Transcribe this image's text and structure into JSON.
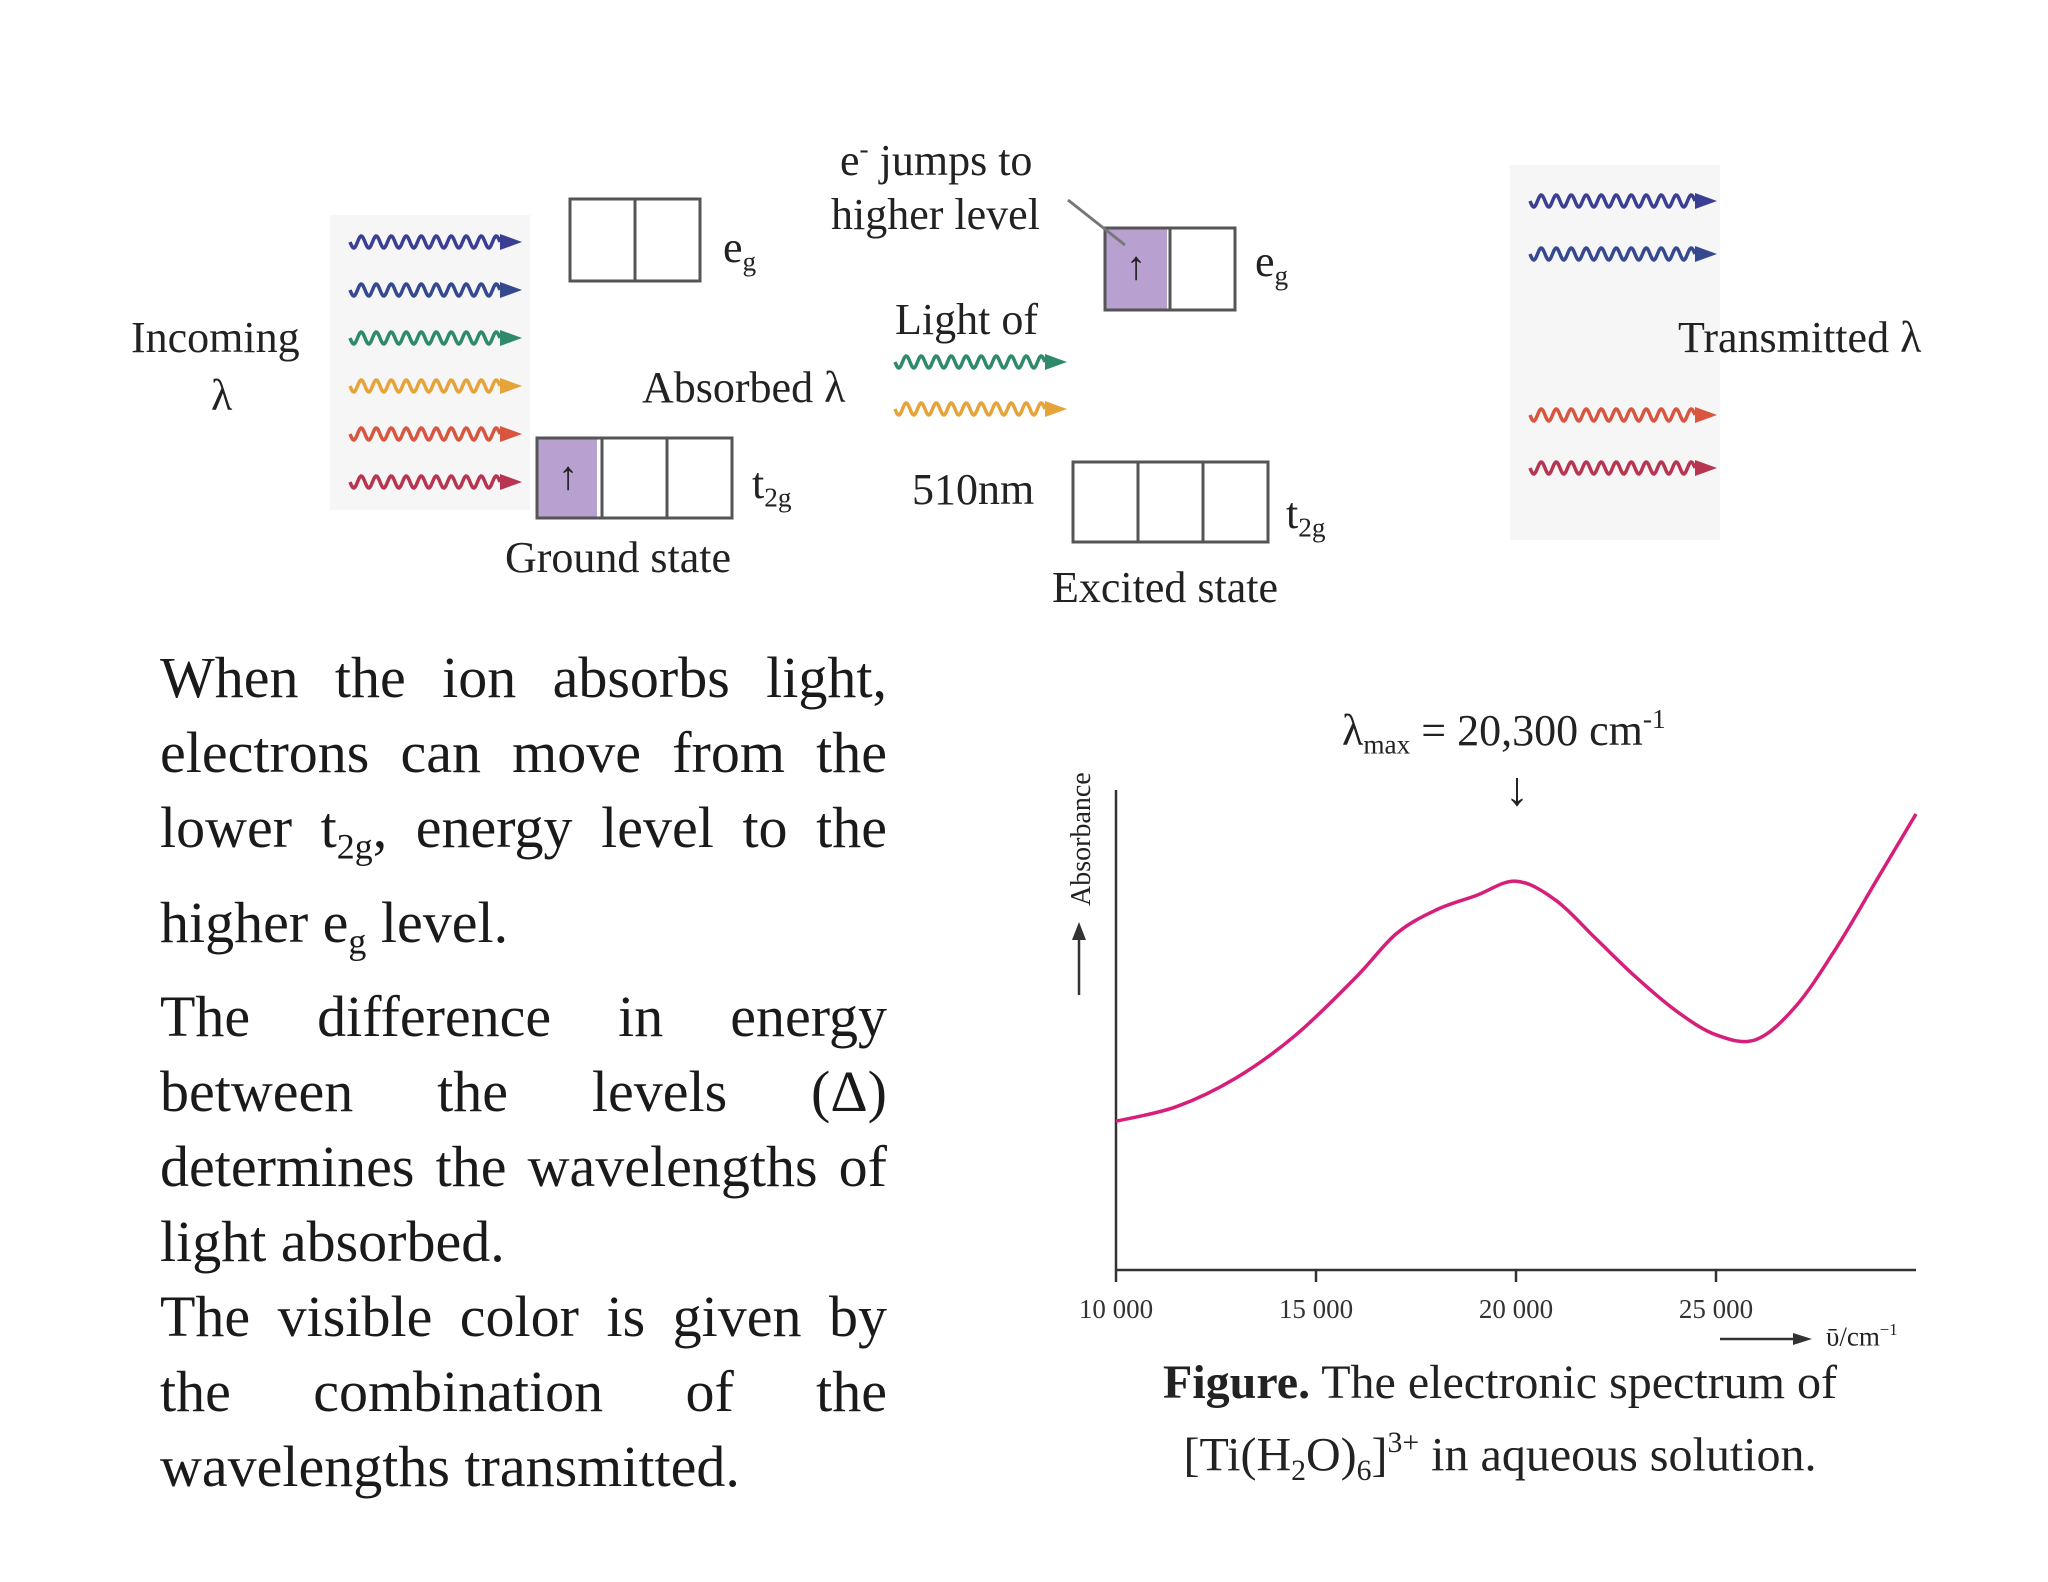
{
  "diagram": {
    "incoming_label": "Incoming",
    "incoming_lambda": "λ",
    "ground_state": "Ground state",
    "excited_state": "Excited state",
    "absorbed_label": "Absorbed λ",
    "light_of": "Light of",
    "wavelength": "510nm",
    "transmitted_label": "Transmitted λ",
    "jumps_e": "e",
    "jumps_sup": "-",
    "jumps_rest": " jumps to",
    "jumps_line2": "higher level",
    "eg_main": "e",
    "eg_sub": "g",
    "t2g_main": "t",
    "t2g_sub": "2g",
    "electron": "↑",
    "incoming_wave_colors": [
      "#3a3f94",
      "#35498f",
      "#2f8a6c",
      "#e6a33a",
      "#d8553f",
      "#b83552"
    ],
    "absorbed_wave_colors": [
      "#2f8a6c",
      "#e6a33a"
    ],
    "transmitted_wave_colors": [
      "#3a3f94",
      "#35498f",
      "#d8553f",
      "#b83552"
    ],
    "occupied_color": "#b8a0d0"
  },
  "paragraph": {
    "p1_a": "When the ion absorbs light, electrons can move from the lower t",
    "p1_sub1": "2g",
    "p1_b": ", energy level to the higher e",
    "p1_sub2": "g",
    "p1_c": " level.",
    "p2": "The difference in energy between the levels (Δ) determines the wavelengths of light absorbed.",
    "p3": "The visible color is given by the combination of the wavelengths transmitted."
  },
  "chart_data": {
    "type": "line",
    "ylabel": "Absorbance",
    "xlabel_main": "ῡ/cm",
    "xlabel_sup": "−1",
    "xlim": [
      10000,
      30000
    ],
    "x_ticks": [
      10000,
      15000,
      20000,
      25000
    ],
    "x_tick_labels": [
      "10 000",
      "15 000",
      "20 000",
      "25 000"
    ],
    "y_range": [
      0,
      1
    ],
    "annotation_lambda": "λ",
    "annotation_sub": "max",
    "annotation_rest": " = 20,300 cm",
    "annotation_sup": "-1",
    "annotation_arrow": "↓",
    "annotation_x": 20000,
    "line_color": "#d61f7a",
    "series": [
      {
        "x": [
          10000,
          11500,
          13000,
          14500,
          16000,
          17000,
          18000,
          19000,
          20000,
          21000,
          22000,
          23000,
          24000,
          25000,
          26000,
          27000,
          28000,
          29000,
          30000
        ],
        "y": [
          0.31,
          0.34,
          0.4,
          0.49,
          0.61,
          0.7,
          0.75,
          0.78,
          0.81,
          0.77,
          0.69,
          0.61,
          0.54,
          0.49,
          0.48,
          0.55,
          0.67,
          0.81,
          0.95
        ]
      }
    ]
  },
  "caption": {
    "bold": "Figure.",
    "line1_rest": " The electronic spectrum of",
    "l2_a": "[Ti(H",
    "l2_sub1": "2",
    "l2_b": "O)",
    "l2_sub2": "6",
    "l2_c": "]",
    "l2_sup": "3+",
    "l2_d": " in aqueous solution."
  }
}
